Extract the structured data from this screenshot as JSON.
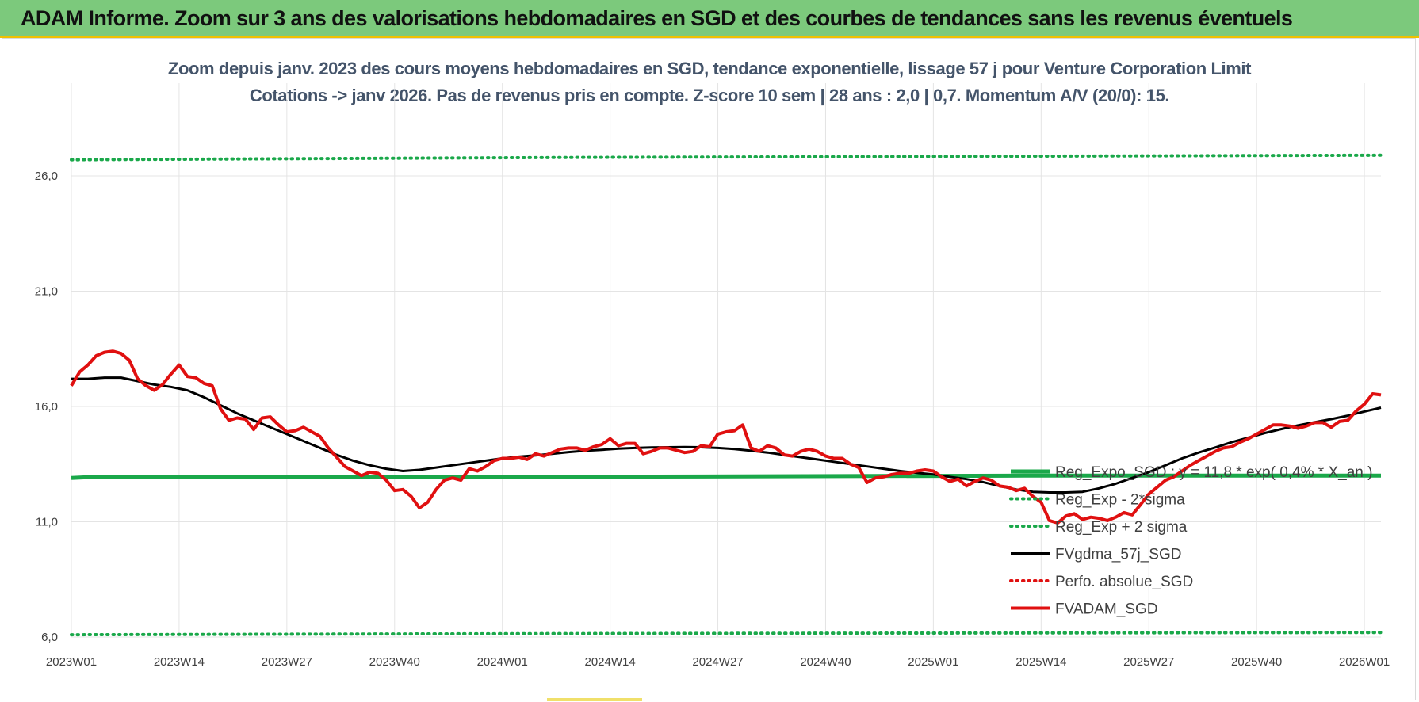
{
  "banner": {
    "title": "ADAM Informe. Zoom sur 3 ans des valorisations hebdomadaires en SGD et des courbes de tendances sans les revenus éventuels",
    "color": "#7cc97c"
  },
  "chart_data": {
    "type": "line",
    "title_line1": "Zoom depuis janv. 2023 des cours moyens hebdomadaires en SGD, tendance exponentielle, lissage 57 j pour Venture Corporation Limit",
    "title_line2": "Cotations -> janv 2026. Pas de revenus pris en compte. Z-score 10 sem  | 28 ans : 2,0 | 0,7. Momentum A/V (20/0): 15.",
    "ylim": [
      6.0,
      28.0
    ],
    "yticks": [
      "6,0",
      "11,0",
      "16,0",
      "21,0",
      "26,0"
    ],
    "ytick_values": [
      6,
      11,
      16,
      21,
      26
    ],
    "xlim": [
      0,
      158
    ],
    "xticks": [
      "2023W01",
      "2023W14",
      "2023W27",
      "2023W40",
      "2024W01",
      "2024W14",
      "2024W27",
      "2024W40",
      "2025W01",
      "2025W14",
      "2025W27",
      "2025W40",
      "2026W01"
    ],
    "xtick_values": [
      0,
      13,
      26,
      39,
      52,
      65,
      78,
      91,
      104,
      117,
      130,
      143,
      156
    ],
    "grid": true,
    "legend_position": "center-right",
    "series": [
      {
        "name": "Reg_Expo_SGD : y = 11,8 * exp( 0,4% * X_an )",
        "style": "solid-thick",
        "color": "#1aa84a",
        "points": [
          [
            0,
            12.9
          ],
          [
            2,
            12.93
          ],
          [
            60,
            12.95
          ],
          [
            115,
            13.0
          ],
          [
            158,
            13.0
          ]
        ]
      },
      {
        "name": "Reg_Exp - 2*sigma",
        "style": "dotted",
        "color": "#1aa84a",
        "points": [
          [
            0,
            6.1
          ],
          [
            60,
            6.15
          ],
          [
            158,
            6.2
          ]
        ]
      },
      {
        "name": "Reg_Exp + 2 sigma",
        "style": "dotted",
        "color": "#1aa84a",
        "points": [
          [
            0,
            26.7
          ],
          [
            60,
            26.8
          ],
          [
            158,
            26.9
          ]
        ]
      },
      {
        "name": "FVgdma_57j_SGD",
        "style": "solid",
        "color": "#000000",
        "points": [
          [
            0,
            17.2
          ],
          [
            2,
            17.2
          ],
          [
            4,
            17.25
          ],
          [
            6,
            17.25
          ],
          [
            8,
            17.1
          ],
          [
            10,
            16.95
          ],
          [
            12,
            16.85
          ],
          [
            14,
            16.7
          ],
          [
            16,
            16.4
          ],
          [
            18,
            16.05
          ],
          [
            20,
            15.7
          ],
          [
            22,
            15.4
          ],
          [
            24,
            15.1
          ],
          [
            26,
            14.8
          ],
          [
            28,
            14.5
          ],
          [
            30,
            14.2
          ],
          [
            32,
            13.9
          ],
          [
            34,
            13.65
          ],
          [
            36,
            13.45
          ],
          [
            38,
            13.3
          ],
          [
            40,
            13.2
          ],
          [
            42,
            13.25
          ],
          [
            44,
            13.35
          ],
          [
            46,
            13.45
          ],
          [
            48,
            13.55
          ],
          [
            50,
            13.65
          ],
          [
            52,
            13.75
          ],
          [
            54,
            13.82
          ],
          [
            56,
            13.88
          ],
          [
            58,
            13.95
          ],
          [
            60,
            14.02
          ],
          [
            62,
            14.08
          ],
          [
            64,
            14.12
          ],
          [
            66,
            14.17
          ],
          [
            68,
            14.2
          ],
          [
            70,
            14.22
          ],
          [
            72,
            14.23
          ],
          [
            74,
            14.24
          ],
          [
            76,
            14.23
          ],
          [
            78,
            14.2
          ],
          [
            80,
            14.15
          ],
          [
            82,
            14.08
          ],
          [
            84,
            14.0
          ],
          [
            86,
            13.9
          ],
          [
            88,
            13.8
          ],
          [
            90,
            13.7
          ],
          [
            92,
            13.6
          ],
          [
            94,
            13.5
          ],
          [
            96,
            13.4
          ],
          [
            98,
            13.3
          ],
          [
            100,
            13.2
          ],
          [
            102,
            13.12
          ],
          [
            104,
            13.05
          ],
          [
            106,
            12.95
          ],
          [
            108,
            12.85
          ],
          [
            110,
            12.72
          ],
          [
            112,
            12.55
          ],
          [
            114,
            12.4
          ],
          [
            116,
            12.3
          ],
          [
            118,
            12.27
          ],
          [
            120,
            12.27
          ],
          [
            122,
            12.3
          ],
          [
            124,
            12.45
          ],
          [
            126,
            12.65
          ],
          [
            128,
            12.9
          ],
          [
            130,
            13.15
          ],
          [
            132,
            13.45
          ],
          [
            134,
            13.75
          ],
          [
            136,
            14.0
          ],
          [
            138,
            14.22
          ],
          [
            140,
            14.45
          ],
          [
            142,
            14.65
          ],
          [
            144,
            14.85
          ],
          [
            146,
            15.02
          ],
          [
            148,
            15.18
          ],
          [
            150,
            15.32
          ],
          [
            152,
            15.45
          ],
          [
            154,
            15.6
          ],
          [
            156,
            15.78
          ],
          [
            158,
            15.95
          ]
        ]
      },
      {
        "name": "Perfo. absolue_SGD",
        "style": "dotted",
        "color": "#e01010",
        "points": []
      },
      {
        "name": "FVADAM_SGD",
        "style": "solid-thick",
        "color": "#e01010",
        "points": [
          [
            0,
            16.9
          ],
          [
            1,
            17.5
          ],
          [
            2,
            17.8
          ],
          [
            3,
            18.2
          ],
          [
            4,
            18.35
          ],
          [
            5,
            18.4
          ],
          [
            6,
            18.3
          ],
          [
            7,
            18.0
          ],
          [
            8,
            17.2
          ],
          [
            9,
            16.9
          ],
          [
            10,
            16.7
          ],
          [
            11,
            16.95
          ],
          [
            12,
            17.4
          ],
          [
            13,
            17.8
          ],
          [
            14,
            17.3
          ],
          [
            15,
            17.25
          ],
          [
            16,
            17.0
          ],
          [
            17,
            16.9
          ],
          [
            18,
            15.9
          ],
          [
            19,
            15.4
          ],
          [
            20,
            15.5
          ],
          [
            21,
            15.45
          ],
          [
            22,
            15.0
          ],
          [
            23,
            15.5
          ],
          [
            24,
            15.55
          ],
          [
            25,
            15.2
          ],
          [
            26,
            14.9
          ],
          [
            27,
            14.95
          ],
          [
            28,
            15.1
          ],
          [
            29,
            14.9
          ],
          [
            30,
            14.7
          ],
          [
            31,
            14.2
          ],
          [
            32,
            13.8
          ],
          [
            33,
            13.4
          ],
          [
            34,
            13.2
          ],
          [
            35,
            13.0
          ],
          [
            36,
            13.15
          ],
          [
            37,
            13.1
          ],
          [
            38,
            12.8
          ],
          [
            39,
            12.35
          ],
          [
            40,
            12.4
          ],
          [
            41,
            12.1
          ],
          [
            42,
            11.6
          ],
          [
            43,
            11.85
          ],
          [
            44,
            12.4
          ],
          [
            45,
            12.8
          ],
          [
            46,
            12.9
          ],
          [
            47,
            12.8
          ],
          [
            48,
            13.3
          ],
          [
            49,
            13.2
          ],
          [
            50,
            13.4
          ],
          [
            51,
            13.65
          ],
          [
            52,
            13.75
          ],
          [
            53,
            13.75
          ],
          [
            54,
            13.8
          ],
          [
            55,
            13.7
          ],
          [
            56,
            13.95
          ],
          [
            57,
            13.85
          ],
          [
            58,
            14.0
          ],
          [
            59,
            14.15
          ],
          [
            60,
            14.2
          ],
          [
            61,
            14.2
          ],
          [
            62,
            14.1
          ],
          [
            63,
            14.25
          ],
          [
            64,
            14.35
          ],
          [
            65,
            14.6
          ],
          [
            66,
            14.3
          ],
          [
            67,
            14.4
          ],
          [
            68,
            14.4
          ],
          [
            69,
            13.95
          ],
          [
            70,
            14.05
          ],
          [
            71,
            14.2
          ],
          [
            72,
            14.2
          ],
          [
            73,
            14.1
          ],
          [
            74,
            14.0
          ],
          [
            75,
            14.05
          ],
          [
            76,
            14.3
          ],
          [
            77,
            14.25
          ],
          [
            78,
            14.8
          ],
          [
            79,
            14.9
          ],
          [
            80,
            14.95
          ],
          [
            81,
            15.2
          ],
          [
            82,
            14.2
          ],
          [
            83,
            14.05
          ],
          [
            84,
            14.3
          ],
          [
            85,
            14.2
          ],
          [
            86,
            13.9
          ],
          [
            87,
            13.85
          ],
          [
            88,
            14.05
          ],
          [
            89,
            14.15
          ],
          [
            90,
            14.05
          ],
          [
            91,
            13.85
          ],
          [
            92,
            13.75
          ],
          [
            93,
            13.75
          ],
          [
            94,
            13.5
          ],
          [
            95,
            13.35
          ],
          [
            96,
            12.7
          ],
          [
            97,
            12.9
          ],
          [
            98,
            12.95
          ],
          [
            99,
            13.05
          ],
          [
            100,
            13.1
          ],
          [
            101,
            13.1
          ],
          [
            102,
            13.2
          ],
          [
            103,
            13.25
          ],
          [
            104,
            13.2
          ],
          [
            105,
            12.95
          ],
          [
            106,
            12.75
          ],
          [
            107,
            12.85
          ],
          [
            108,
            12.55
          ],
          [
            109,
            12.75
          ],
          [
            110,
            12.9
          ],
          [
            111,
            12.8
          ],
          [
            112,
            12.55
          ],
          [
            113,
            12.5
          ],
          [
            114,
            12.35
          ],
          [
            115,
            12.45
          ],
          [
            116,
            12.1
          ],
          [
            117,
            11.85
          ],
          [
            118,
            11.05
          ],
          [
            119,
            10.95
          ],
          [
            120,
            11.25
          ],
          [
            121,
            11.35
          ],
          [
            122,
            11.1
          ],
          [
            123,
            11.2
          ],
          [
            124,
            11.15
          ],
          [
            125,
            11.05
          ],
          [
            126,
            11.2
          ],
          [
            127,
            11.4
          ],
          [
            128,
            11.3
          ],
          [
            129,
            11.75
          ],
          [
            130,
            12.2
          ],
          [
            131,
            12.5
          ],
          [
            132,
            12.8
          ],
          [
            133,
            12.95
          ],
          [
            134,
            13.2
          ],
          [
            135,
            13.45
          ],
          [
            136,
            13.65
          ],
          [
            137,
            13.85
          ],
          [
            138,
            14.05
          ],
          [
            139,
            14.2
          ],
          [
            140,
            14.25
          ],
          [
            141,
            14.45
          ],
          [
            142,
            14.6
          ],
          [
            143,
            14.8
          ],
          [
            144,
            15.0
          ],
          [
            145,
            15.2
          ],
          [
            146,
            15.2
          ],
          [
            147,
            15.15
          ],
          [
            148,
            15.05
          ],
          [
            149,
            15.15
          ],
          [
            150,
            15.3
          ],
          [
            151,
            15.3
          ],
          [
            152,
            15.1
          ],
          [
            153,
            15.35
          ],
          [
            154,
            15.4
          ],
          [
            155,
            15.8
          ],
          [
            156,
            16.1
          ],
          [
            157,
            16.55
          ],
          [
            158,
            16.5
          ]
        ]
      }
    ]
  }
}
